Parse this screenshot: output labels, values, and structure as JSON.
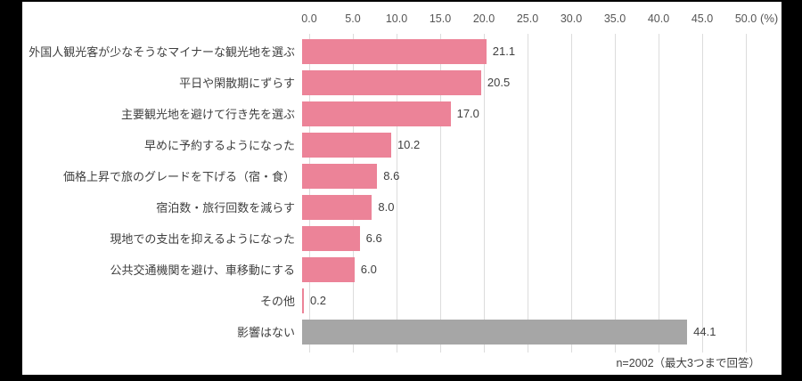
{
  "chart_data": {
    "type": "bar",
    "orientation": "horizontal",
    "title": "",
    "xlabel": "(%)",
    "xlim": [
      0,
      50
    ],
    "xticks": [
      "0.0",
      "5.0",
      "10.0",
      "15.0",
      "20.0",
      "25.0",
      "30.0",
      "35.0",
      "40.0",
      "45.0",
      "50.0"
    ],
    "grid": true,
    "legend": "none",
    "categories": [
      "外国人観光客が少なそうなマイナーな観光地を選ぶ",
      "平日や閑散期にずらす",
      "主要観光地を避けて行き先を選ぶ",
      "早めに予約するようになった",
      "価格上昇で旅のグレードを下げる（宿・食）",
      "宿泊数・旅行回数を減らす",
      "現地での支出を抑えるようになった",
      "公共交通機関を避け、車移動にする",
      "その他",
      "影響はない"
    ],
    "values": [
      21.1,
      20.5,
      17.0,
      10.2,
      8.6,
      8.0,
      6.6,
      6.0,
      0.2,
      44.1
    ],
    "value_labels": [
      "21.1",
      "20.5",
      "17.0",
      "10.2",
      "8.6",
      "8.0",
      "6.6",
      "6.0",
      "0.2",
      "44.1"
    ],
    "bar_colors": [
      "#ec8398",
      "#ec8398",
      "#ec8398",
      "#ec8398",
      "#ec8398",
      "#ec8398",
      "#ec8398",
      "#ec8398",
      "#ec8398",
      "#a6a6a6"
    ],
    "note": "n=2002（最大3つまで回答）"
  },
  "colors": {
    "bar_pink": "#ec8398",
    "bar_gray": "#a6a6a6",
    "gridline": "#dcdcdc",
    "text": "#3f3f3f",
    "axis_text": "#555555",
    "panel_background": "#ffffff",
    "page_background": "#000000"
  }
}
